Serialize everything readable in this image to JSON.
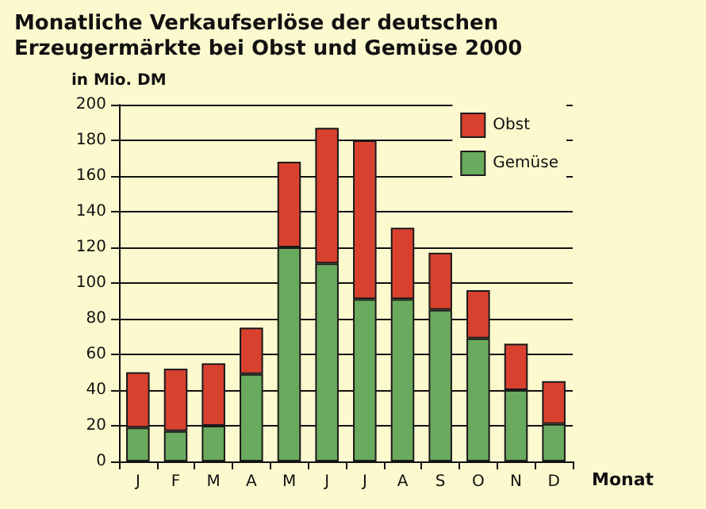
{
  "chart_data": {
    "type": "bar",
    "title": "Monatliche Verkaufserlöse der deutschen Erzeugermärkte bei Obst und Gemüse 2000",
    "xlabel": "Monat",
    "ylabel": "in Mio. DM",
    "categories": [
      "J",
      "F",
      "M",
      "A",
      "M",
      "J",
      "J",
      "A",
      "S",
      "O",
      "N",
      "D"
    ],
    "stacked": true,
    "series": [
      {
        "name": "Gemüse",
        "color": "#6aaa5e",
        "values": [
          19,
          17,
          20,
          49,
          120,
          111,
          91,
          91,
          85,
          69,
          40,
          21
        ]
      },
      {
        "name": "Obst",
        "color": "#d9412f",
        "values": [
          31,
          35,
          35,
          26,
          48,
          76,
          89,
          40,
          32,
          27,
          26,
          24
        ]
      }
    ],
    "ylim": [
      0,
      200
    ],
    "yticks": [
      0,
      20,
      40,
      60,
      80,
      100,
      120,
      140,
      160,
      180,
      200
    ],
    "grid": "y",
    "legend": "top right"
  }
}
